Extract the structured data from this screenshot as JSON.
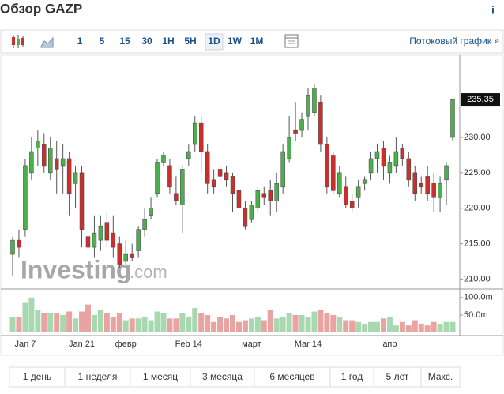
{
  "header": {
    "title": "Обзор GAZP",
    "info": "i"
  },
  "toolbar": {
    "intervals": [
      "1",
      "5",
      "15",
      "30",
      "1H",
      "5H",
      "1D",
      "1W",
      "1M"
    ],
    "selected": "1D",
    "stream_link": "Потоковый график »"
  },
  "watermark": {
    "brand": "Investing",
    "suffix": ".com"
  },
  "ranges": [
    "1 день",
    "1 неделя",
    "1 месяц",
    "3 месяца",
    "6 месяцев",
    "1 год",
    "5 лет",
    "Макс."
  ],
  "chart_data": {
    "type": "candlestick",
    "categories": [
      null,
      null,
      "Jan 7",
      null,
      null,
      null,
      null,
      null,
      null,
      null,
      null,
      "Jan 21",
      null,
      null,
      null,
      null,
      null,
      null,
      "февр",
      null,
      null,
      null,
      null,
      null,
      null,
      null,
      null,
      null,
      "Feb 14",
      null,
      null,
      null,
      null,
      null,
      null,
      null,
      null,
      null,
      "март",
      null,
      null,
      null,
      null,
      null,
      null,
      null,
      null,
      "Mar 14",
      null,
      null,
      null,
      null,
      null,
      null,
      null,
      null,
      null,
      null,
      null,
      null,
      "апр",
      null,
      null,
      null,
      null,
      null,
      null,
      null,
      null,
      null,
      null
    ],
    "open": [
      213.5,
      215.5,
      217,
      225,
      228.5,
      229,
      225,
      227,
      226,
      227,
      223.5,
      225,
      216,
      214.5,
      215.5,
      218,
      216.5,
      215,
      212.5,
      213.5,
      214,
      217,
      219,
      222,
      226.5,
      226,
      222,
      220.5,
      227,
      229,
      232,
      228,
      224,
      225.5,
      225,
      224.5,
      222.5,
      220,
      218.5,
      220,
      222,
      222.5,
      221,
      223,
      227,
      231,
      231,
      233,
      233.5,
      235,
      229,
      227.5,
      222,
      223,
      221,
      221.5,
      223.5,
      225,
      227,
      228.5,
      225,
      226,
      228.5,
      227,
      225,
      223.5,
      224.5,
      223.5,
      221.5,
      224,
      230
    ],
    "high": [
      216,
      217,
      227,
      230,
      231,
      230.5,
      230,
      229.5,
      229,
      228,
      226,
      226,
      218,
      219,
      219,
      219.5,
      219,
      216,
      215.5,
      215,
      217.5,
      220,
      221.5,
      227,
      228,
      227,
      224.5,
      226,
      229,
      233,
      233,
      229,
      225.5,
      226,
      226,
      225,
      224,
      221,
      221,
      223,
      223,
      224,
      225,
      229,
      233,
      235,
      233.5,
      237,
      237.5,
      236,
      230,
      228,
      226,
      224.5,
      222,
      224,
      224.5,
      228,
      229,
      229.5,
      227.5,
      230,
      229,
      228,
      226,
      224.5,
      226,
      225,
      224.5,
      226.5,
      235.5
    ],
    "low": [
      210.5,
      213,
      216,
      224,
      226,
      225,
      224,
      222,
      222,
      219,
      220,
      214.5,
      213,
      213,
      214,
      214.5,
      213,
      211.5,
      212,
      212.5,
      213,
      216,
      218.5,
      221.5,
      226,
      222,
      220.5,
      216.5,
      226,
      228,
      225,
      222,
      222,
      223.5,
      223,
      219.5,
      218.5,
      217,
      218,
      219.5,
      220.5,
      219,
      219.5,
      222,
      226.5,
      229.5,
      230,
      231,
      233,
      228,
      222,
      222,
      221.5,
      220,
      219.5,
      220,
      222.5,
      224,
      225,
      224,
      223.5,
      225,
      226,
      223,
      221,
      222,
      221,
      219.5,
      219.5,
      220.5,
      229.5
    ],
    "close": [
      215.5,
      214.5,
      226,
      228,
      229.5,
      226,
      228.5,
      225.5,
      227,
      222,
      225,
      217,
      214.5,
      216.5,
      217.5,
      215.5,
      214.5,
      212,
      213.5,
      213,
      217,
      218.5,
      220,
      226.5,
      227.5,
      223,
      221,
      225.5,
      228,
      232,
      228,
      223.5,
      223,
      224.5,
      224,
      222,
      220,
      217.5,
      220.5,
      222.5,
      221.5,
      221,
      223.5,
      228,
      230,
      230.5,
      232.5,
      236,
      237,
      229,
      223,
      222.5,
      225,
      220.5,
      220,
      223,
      224,
      227,
      228,
      226,
      226.5,
      228,
      227,
      224,
      222,
      223,
      222,
      221.5,
      223.5,
      226,
      235.35
    ],
    "volume": [
      45,
      45,
      85,
      100,
      65,
      55,
      55,
      55,
      50,
      60,
      40,
      60,
      80,
      50,
      65,
      55,
      45,
      55,
      35,
      40,
      40,
      45,
      35,
      60,
      55,
      40,
      40,
      55,
      45,
      70,
      55,
      50,
      30,
      45,
      40,
      50,
      30,
      35,
      40,
      45,
      35,
      65,
      40,
      45,
      55,
      50,
      50,
      45,
      60,
      65,
      55,
      50,
      45,
      35,
      35,
      30,
      25,
      30,
      30,
      40,
      45,
      20,
      30,
      20,
      35,
      25,
      20,
      30,
      25,
      30,
      30
    ],
    "up_color": "#4cae4c",
    "down_color": "#c9302c",
    "volume_up_color": "#a8d8b0",
    "volume_down_color": "#e9a3a3",
    "ylim": [
      208.6,
      241.6
    ],
    "yticks": [
      {
        "value": 210,
        "label": "210.00"
      },
      {
        "value": 215,
        "label": "215.00"
      },
      {
        "value": 220,
        "label": "220.00"
      },
      {
        "value": 225,
        "label": "225.00"
      },
      {
        "value": 230,
        "label": "230.00"
      }
    ],
    "last_price": {
      "value": 235.35,
      "label": "235,35"
    },
    "volume_ylim": [
      0,
      120
    ],
    "volume_ticks": [
      {
        "value": 50,
        "label": "50.0m"
      },
      {
        "value": 100,
        "label": "100.0m"
      }
    ]
  }
}
